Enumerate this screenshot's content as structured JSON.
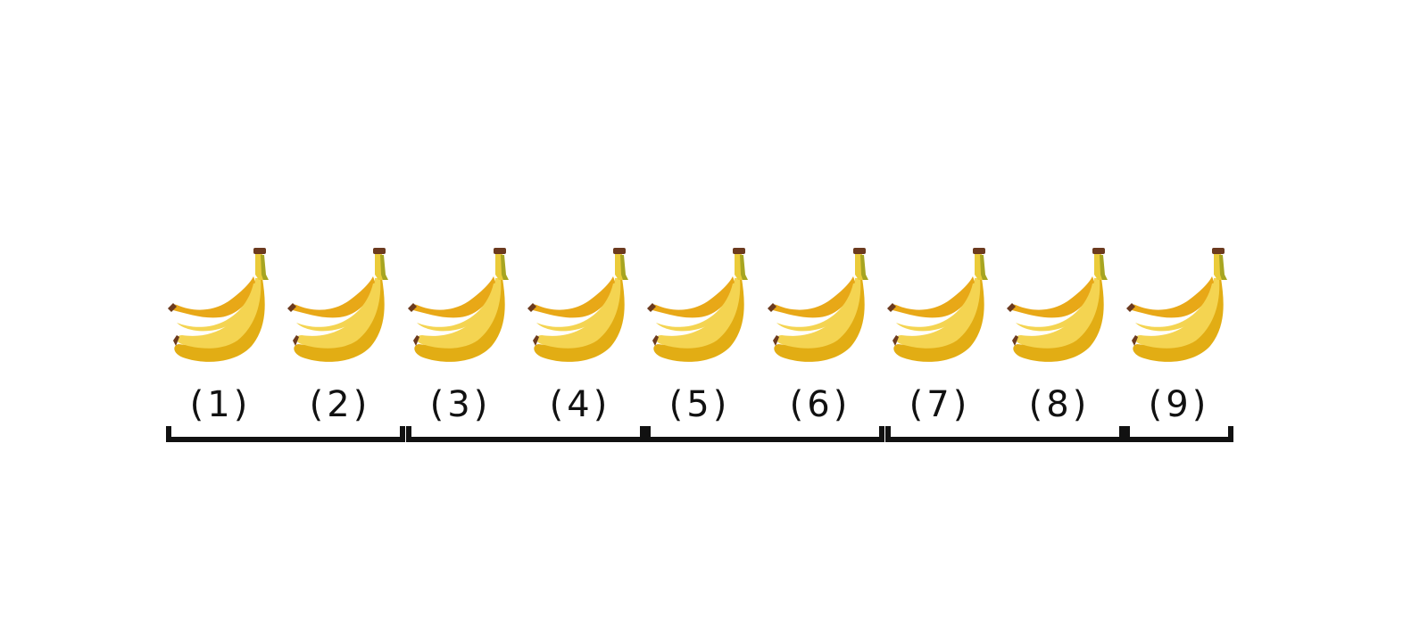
{
  "diagram": {
    "icon": "banana-bunch-icon",
    "colors": {
      "peel_dark": "#E8A817",
      "peel_light": "#F4D451",
      "peel_shadow": "#E2AD14",
      "stem_green": "#A7A521",
      "stem_tip": "#6B3A1F",
      "bracket": "#111111"
    },
    "items": [
      {
        "label": "(1)"
      },
      {
        "label": "(2)"
      },
      {
        "label": "(3)"
      },
      {
        "label": "(4)"
      },
      {
        "label": "(5)"
      },
      {
        "label": "(6)"
      },
      {
        "label": "(7)"
      },
      {
        "label": "(8)"
      },
      {
        "label": "(9)"
      }
    ],
    "groups": [
      {
        "members": [
          1,
          2
        ]
      },
      {
        "members": [
          3,
          4
        ]
      },
      {
        "members": [
          5,
          6
        ]
      },
      {
        "members": [
          7,
          8
        ]
      },
      {
        "members": [
          9
        ]
      }
    ]
  }
}
